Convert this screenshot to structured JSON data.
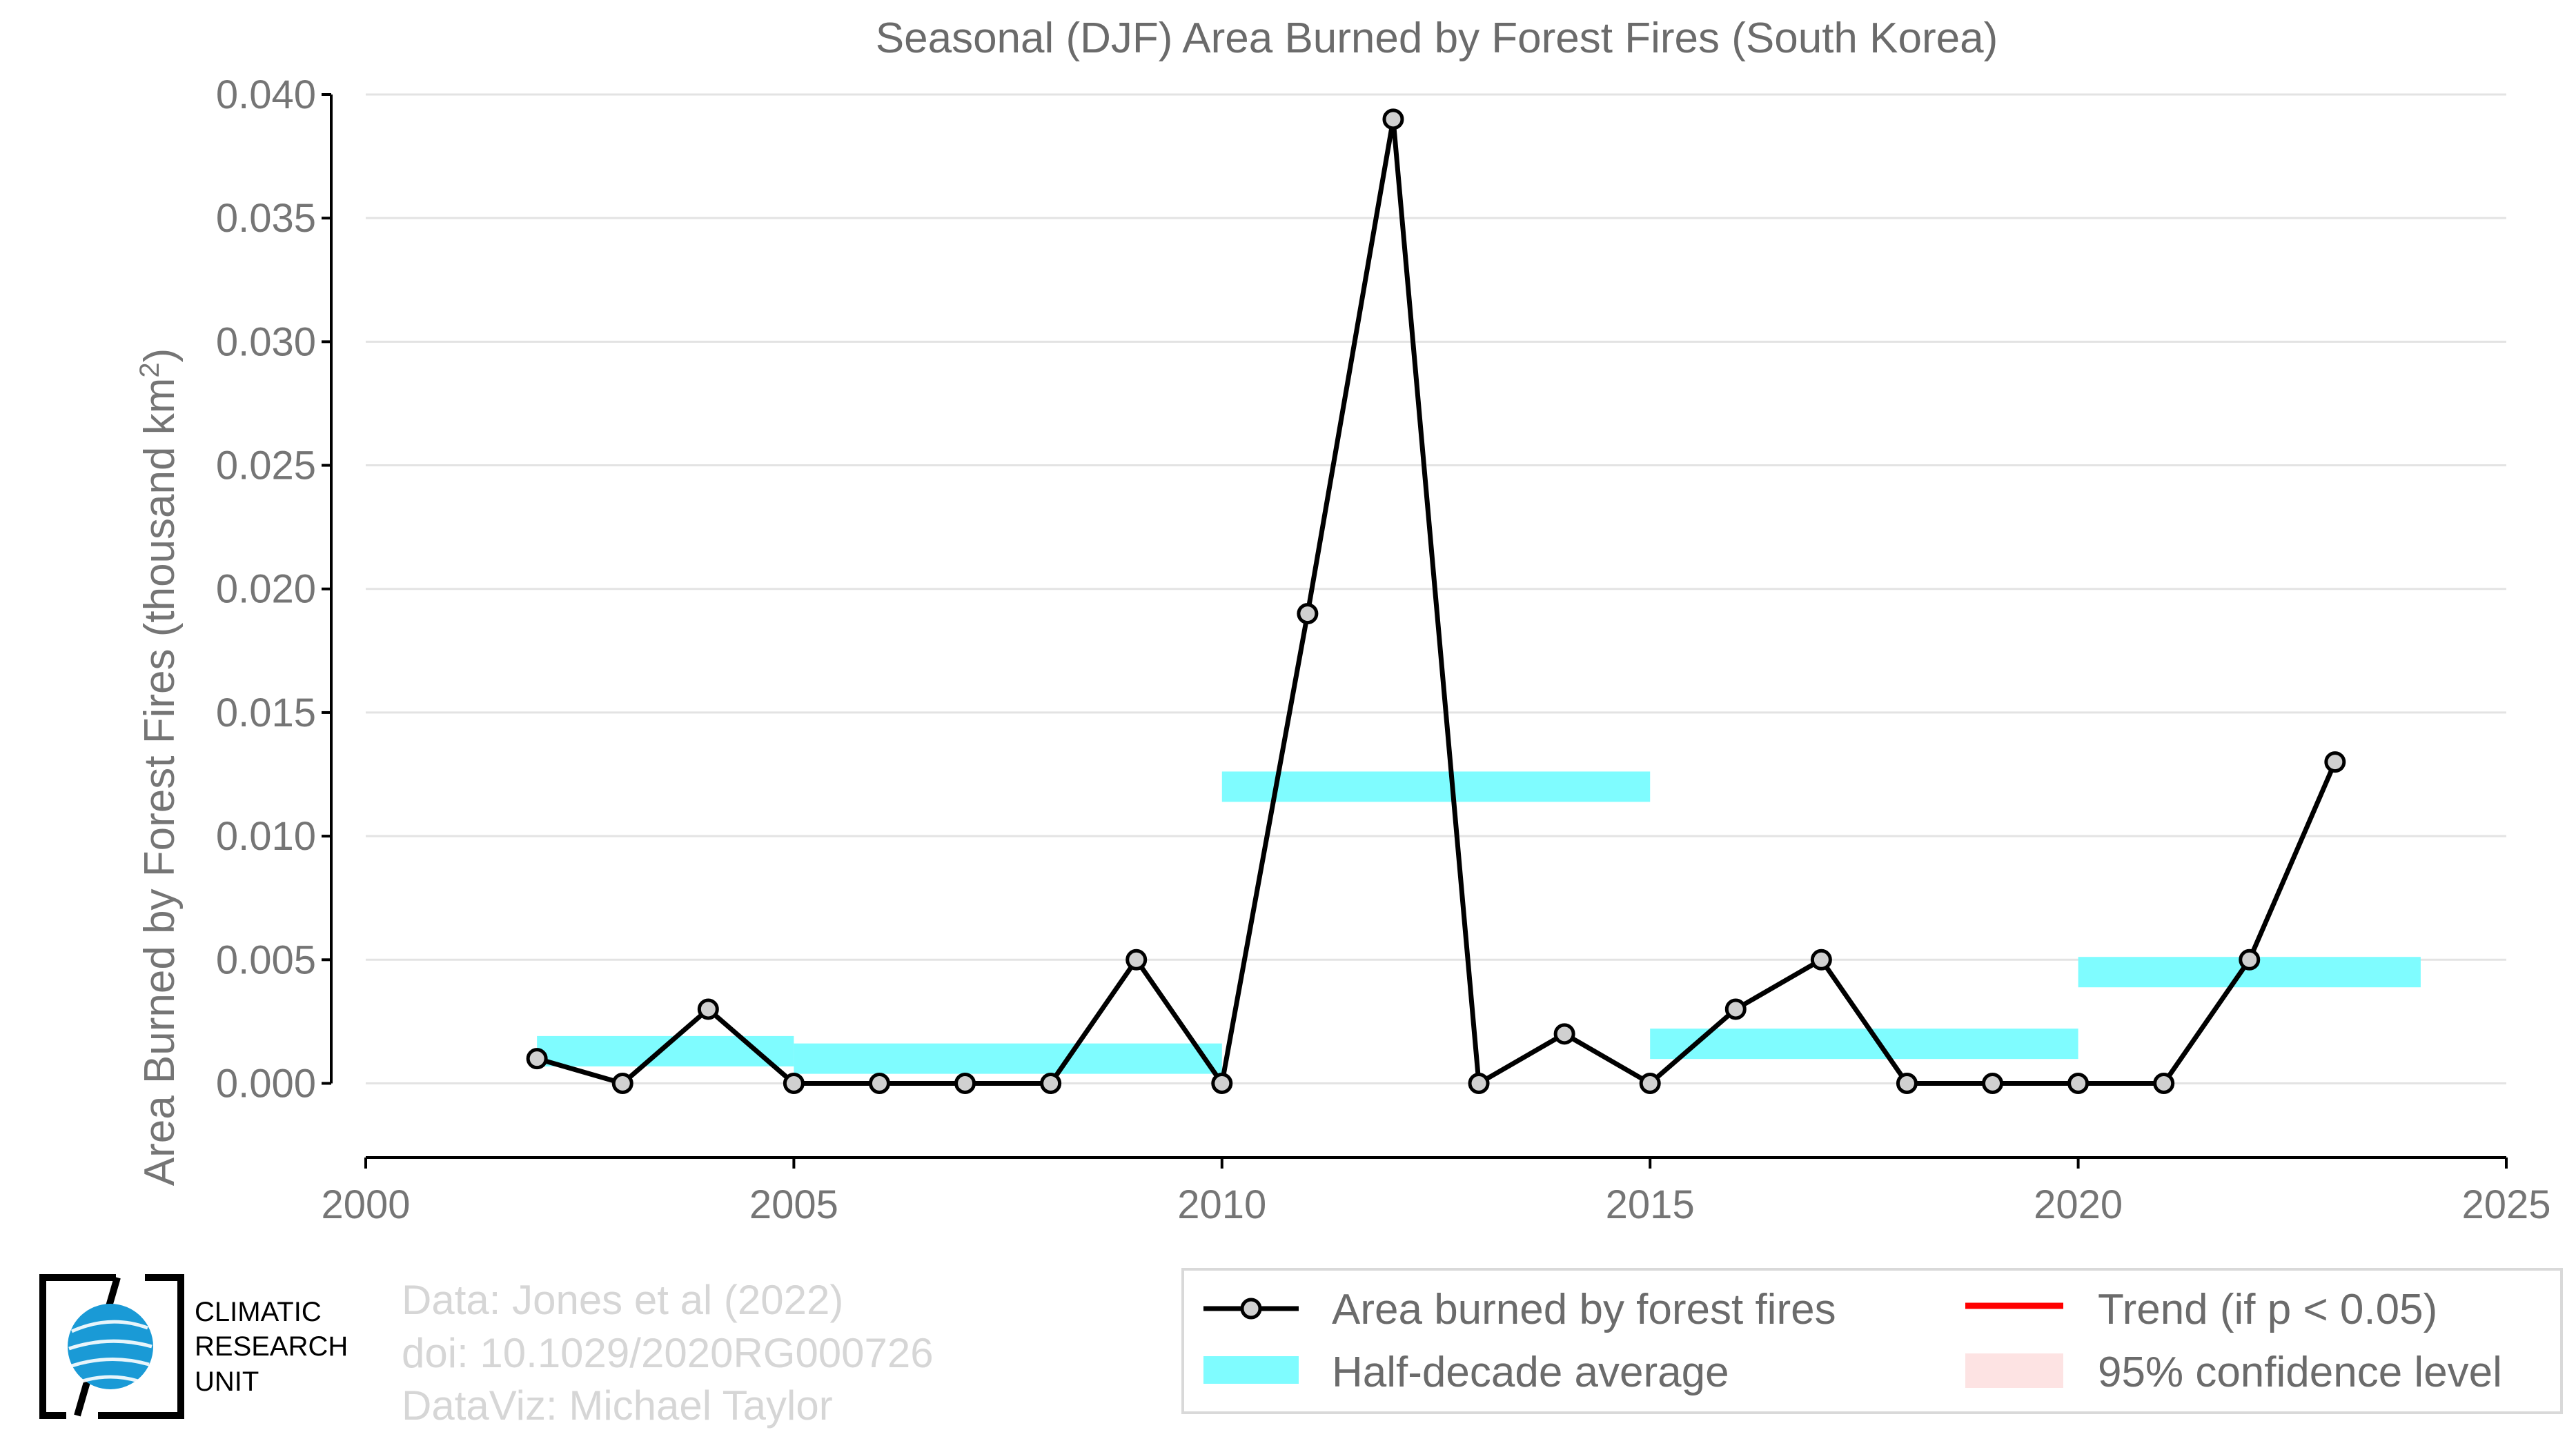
{
  "chart_data": {
    "type": "line",
    "title": "Seasonal (DJF) Area Burned by Forest Fires (South Korea)",
    "ylabel": "Area Burned by Forest Fires (thousand km",
    "ylabel_sup": "2",
    "ylabel_end": ")",
    "xlim": [
      2000,
      2025
    ],
    "ylim": [
      -0.003,
      0.04
    ],
    "x_ticks": [
      2000,
      2005,
      2010,
      2015,
      2020,
      2025
    ],
    "x_tick_labels": [
      "2000",
      "2005",
      "2010",
      "2015",
      "2020",
      "2025"
    ],
    "y_ticks": [
      0.0,
      0.005,
      0.01,
      0.015,
      0.02,
      0.025,
      0.03,
      0.035,
      0.04
    ],
    "y_tick_labels": [
      "0.000",
      "0.005",
      "0.010",
      "0.015",
      "0.020",
      "0.025",
      "0.030",
      "0.035",
      "0.040"
    ],
    "grid": "horizontal",
    "series": [
      {
        "name": "Area burned by forest fires",
        "color": "#000000",
        "marker_fill": "#d0d0d0",
        "x": [
          2002,
          2003,
          2004,
          2005,
          2006,
          2007,
          2008,
          2009,
          2010,
          2011,
          2012,
          2013,
          2014,
          2015,
          2016,
          2017,
          2018,
          2019,
          2020,
          2021,
          2022,
          2023
        ],
        "y": [
          0.001,
          0.0,
          0.003,
          0.0,
          0.0,
          0.0,
          0.0,
          0.005,
          0.0,
          0.019,
          0.039,
          0.0,
          0.002,
          0.0,
          0.003,
          0.005,
          0.0,
          0.0,
          0.0,
          0.0,
          0.005,
          0.013
        ]
      }
    ],
    "half_decade_average": {
      "name": "Half-decade average",
      "color": "#7ffcff",
      "segments": [
        {
          "x0": 2002,
          "x1": 2005,
          "y": 0.0013
        },
        {
          "x0": 2005,
          "x1": 2010,
          "y": 0.001
        },
        {
          "x0": 2010,
          "x1": 2015,
          "y": 0.012
        },
        {
          "x0": 2015,
          "x1": 2020,
          "y": 0.0016
        },
        {
          "x0": 2020,
          "x1": 2024,
          "y": 0.0045
        }
      ]
    },
    "legend": {
      "placement": "bottom-right",
      "items": [
        {
          "label": "Area burned by forest fires",
          "kind": "line-marker",
          "color": "#000000"
        },
        {
          "label": "Trend (if p < 0.05)",
          "kind": "line",
          "color": "#ff0000"
        },
        {
          "label": "Half-decade average",
          "kind": "band",
          "color": "#7ffcff"
        },
        {
          "label": "95% confidence level",
          "kind": "band",
          "color": "#fde3e3"
        }
      ]
    }
  },
  "credits": {
    "line1": "Data: Jones et al (2022)",
    "line2": "doi: 10.1029/2020RG000726",
    "line3": "DataViz: Michael Taylor"
  },
  "logo": {
    "line1": "CLIMATIC",
    "line2": "RESEARCH",
    "line3": "UNIT"
  }
}
